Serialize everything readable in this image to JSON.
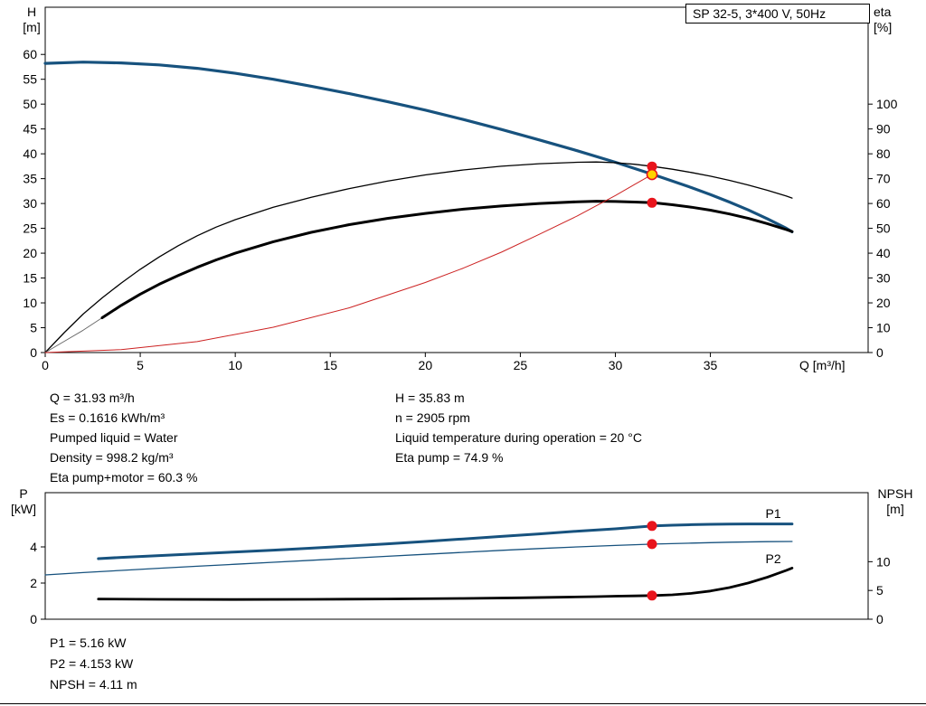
{
  "title_box": "SP 32-5, 3*400 V, 50Hz",
  "colors": {
    "curve_blue": "#17527e",
    "curve_black": "#000000",
    "curve_gray": "#666666",
    "curve_red": "#cc2222",
    "dot_red": "#e8141c",
    "dot_yellow": "#ffd400",
    "axis": "#000000"
  },
  "chart_data": [
    {
      "type": "line",
      "title": "SP 32-5, 3*400 V, 50Hz",
      "grid": false,
      "x": {
        "label": "Q [m³/h]",
        "lim": [
          0,
          43.3
        ],
        "ticks": [
          0,
          5,
          10,
          15,
          20,
          25,
          30,
          35
        ]
      },
      "y_left": {
        "label": "H",
        "unit": "[m]",
        "lim": [
          0,
          69.5
        ],
        "ticks": [
          0,
          5,
          10,
          15,
          20,
          25,
          30,
          35,
          40,
          45,
          50,
          55,
          60
        ]
      },
      "y_right": {
        "label": "eta",
        "unit": "[%]",
        "lim": [
          0,
          139
        ],
        "ticks": [
          0,
          10,
          20,
          30,
          40,
          50,
          60,
          70,
          80,
          90,
          100
        ]
      },
      "series": [
        {
          "name": "H-curve",
          "axis": "left",
          "color": "#17527e",
          "width": 3.2,
          "points": [
            [
              0,
              58.2
            ],
            [
              2,
              58.45
            ],
            [
              4,
              58.3
            ],
            [
              6,
              57.9
            ],
            [
              8,
              57.2
            ],
            [
              10,
              56.2
            ],
            [
              12,
              55.0
            ],
            [
              14,
              53.6
            ],
            [
              16,
              52.1
            ],
            [
              18,
              50.5
            ],
            [
              20,
              48.8
            ],
            [
              22,
              46.9
            ],
            [
              24,
              44.9
            ],
            [
              26,
              42.8
            ],
            [
              28,
              40.6
            ],
            [
              30,
              38.3
            ],
            [
              32,
              35.83
            ],
            [
              34,
              33.2
            ],
            [
              35,
              31.8
            ],
            [
              36,
              30.3
            ],
            [
              37,
              28.7
            ],
            [
              38,
              26.9
            ],
            [
              39,
              25.0
            ],
            [
              39.3,
              24.3
            ]
          ]
        },
        {
          "name": "eta-pump",
          "axis": "right",
          "color": "#000000",
          "width": 1.3,
          "points": [
            [
              0,
              0
            ],
            [
              0.5,
              4
            ],
            [
              1,
              8
            ],
            [
              2,
              15.5
            ],
            [
              3,
              22
            ],
            [
              4,
              28
            ],
            [
              5,
              33.5
            ],
            [
              6,
              38.5
            ],
            [
              7,
              43
            ],
            [
              8,
              47
            ],
            [
              9,
              50.5
            ],
            [
              10,
              53.5
            ],
            [
              12,
              58.5
            ],
            [
              14,
              62.5
            ],
            [
              16,
              66
            ],
            [
              18,
              69
            ],
            [
              20,
              71.5
            ],
            [
              22,
              73.5
            ],
            [
              24,
              75
            ],
            [
              26,
              76
            ],
            [
              28,
              76.6
            ],
            [
              29,
              76.7
            ],
            [
              30,
              76.4
            ],
            [
              31,
              75.8
            ],
            [
              32,
              74.9
            ],
            [
              33,
              73.8
            ],
            [
              34,
              72.5
            ],
            [
              35,
              71
            ],
            [
              36,
              69.3
            ],
            [
              37,
              67.4
            ],
            [
              38,
              65.3
            ],
            [
              39,
              63
            ],
            [
              39.3,
              62.2
            ]
          ]
        },
        {
          "name": "eta-pump-motor-ext",
          "axis": "right",
          "color": "#666666",
          "width": 0.9,
          "points": [
            [
              0,
              0
            ],
            [
              1,
              4.5
            ],
            [
              2,
              9
            ],
            [
              3,
              14
            ]
          ]
        },
        {
          "name": "eta-pump-motor",
          "axis": "right",
          "color": "#000000",
          "width": 3,
          "points": [
            [
              3,
              14
            ],
            [
              4,
              19
            ],
            [
              5,
              23.5
            ],
            [
              6,
              27.5
            ],
            [
              7,
              31
            ],
            [
              8,
              34.3
            ],
            [
              9,
              37.3
            ],
            [
              10,
              40
            ],
            [
              12,
              44.6
            ],
            [
              14,
              48.4
            ],
            [
              16,
              51.5
            ],
            [
              18,
              54
            ],
            [
              20,
              56
            ],
            [
              22,
              57.7
            ],
            [
              24,
              59
            ],
            [
              26,
              60
            ],
            [
              28,
              60.7
            ],
            [
              29,
              60.9
            ],
            [
              30,
              60.8
            ],
            [
              31,
              60.6
            ],
            [
              32,
              60.3
            ],
            [
              33,
              59.5
            ],
            [
              34,
              58.5
            ],
            [
              35,
              57.3
            ],
            [
              36,
              55.8
            ],
            [
              37,
              54
            ],
            [
              38,
              51.9
            ],
            [
              39,
              49.5
            ],
            [
              39.3,
              48.7
            ]
          ]
        },
        {
          "name": "system-curve",
          "axis": "left",
          "color": "#cc2222",
          "width": 1,
          "points": [
            [
              0,
              0
            ],
            [
              4,
              0.6
            ],
            [
              8,
              2.2
            ],
            [
              12,
              5.1
            ],
            [
              16,
              9.0
            ],
            [
              20,
              14.1
            ],
            [
              22,
              17.0
            ],
            [
              24,
              20.2
            ],
            [
              26,
              23.8
            ],
            [
              28,
              27.5
            ],
            [
              30,
              31.6
            ],
            [
              31,
              33.8
            ],
            [
              31.93,
              35.83
            ]
          ]
        }
      ],
      "markers": [
        {
          "name": "duty-eta-pump",
          "x": 31.93,
          "y": 74.9,
          "axis": "right",
          "fill": "#e8141c"
        },
        {
          "name": "duty-eta-pump-motor",
          "x": 31.93,
          "y": 60.3,
          "axis": "right",
          "fill": "#e8141c"
        },
        {
          "name": "duty-point",
          "x": 31.93,
          "y": 35.83,
          "axis": "left",
          "fill": "#ffd400",
          "stroke": "#e8141c"
        }
      ],
      "annotations": []
    },
    {
      "type": "line",
      "title": "",
      "grid": false,
      "x": {
        "label": "",
        "lim": [
          0,
          43.3
        ],
        "ticks": []
      },
      "y_left": {
        "label": "P",
        "unit": "[kW]",
        "lim": [
          0,
          7
        ],
        "ticks": [
          0,
          2,
          4
        ]
      },
      "y_right": {
        "label": "NPSH",
        "unit": "[m]",
        "lim": [
          0,
          22
        ],
        "ticks": [
          0,
          5,
          10
        ]
      },
      "series": [
        {
          "name": "P1",
          "axis": "left",
          "color": "#17527e",
          "width": 3,
          "points": [
            [
              2.8,
              3.35
            ],
            [
              4,
              3.42
            ],
            [
              6,
              3.52
            ],
            [
              8,
              3.62
            ],
            [
              10,
              3.72
            ],
            [
              12,
              3.82
            ],
            [
              14,
              3.93
            ],
            [
              16,
              4.05
            ],
            [
              18,
              4.17
            ],
            [
              20,
              4.3
            ],
            [
              22,
              4.44
            ],
            [
              24,
              4.58
            ],
            [
              26,
              4.72
            ],
            [
              28,
              4.87
            ],
            [
              30,
              5.0
            ],
            [
              31,
              5.08
            ],
            [
              32,
              5.16
            ],
            [
              33,
              5.2
            ],
            [
              34,
              5.23
            ],
            [
              35,
              5.25
            ],
            [
              36,
              5.26
            ],
            [
              37,
              5.27
            ],
            [
              38,
              5.27
            ],
            [
              39.3,
              5.27
            ]
          ]
        },
        {
          "name": "P2",
          "axis": "left",
          "color": "#17527e",
          "width": 1.3,
          "points": [
            [
              0,
              2.45
            ],
            [
              2,
              2.58
            ],
            [
              4,
              2.7
            ],
            [
              6,
              2.82
            ],
            [
              8,
              2.93
            ],
            [
              10,
              3.04
            ],
            [
              12,
              3.15
            ],
            [
              14,
              3.26
            ],
            [
              16,
              3.37
            ],
            [
              18,
              3.48
            ],
            [
              20,
              3.59
            ],
            [
              22,
              3.7
            ],
            [
              24,
              3.81
            ],
            [
              26,
              3.91
            ],
            [
              28,
              4.0
            ],
            [
              30,
              4.08
            ],
            [
              32,
              4.153
            ],
            [
              34,
              4.21
            ],
            [
              36,
              4.26
            ],
            [
              38,
              4.29
            ],
            [
              39.3,
              4.3
            ]
          ]
        },
        {
          "name": "NPSH",
          "axis": "right",
          "color": "#000000",
          "width": 2.8,
          "points": [
            [
              2.8,
              3.5
            ],
            [
              6,
              3.45
            ],
            [
              10,
              3.42
            ],
            [
              14,
              3.45
            ],
            [
              18,
              3.52
            ],
            [
              22,
              3.62
            ],
            [
              25,
              3.72
            ],
            [
              27,
              3.82
            ],
            [
              29,
              3.93
            ],
            [
              30,
              4.0
            ],
            [
              31,
              4.05
            ],
            [
              32,
              4.11
            ],
            [
              33,
              4.25
            ],
            [
              34,
              4.5
            ],
            [
              35,
              4.9
            ],
            [
              36,
              5.5
            ],
            [
              37,
              6.3
            ],
            [
              38,
              7.3
            ],
            [
              39,
              8.5
            ],
            [
              39.3,
              8.9
            ]
          ]
        }
      ],
      "markers": [
        {
          "name": "duty-p1",
          "x": 31.93,
          "y": 5.16,
          "axis": "left",
          "fill": "#e8141c"
        },
        {
          "name": "duty-p2",
          "x": 31.93,
          "y": 4.153,
          "axis": "left",
          "fill": "#e8141c"
        },
        {
          "name": "duty-npsh",
          "x": 31.93,
          "y": 4.11,
          "axis": "right",
          "fill": "#e8141c"
        }
      ],
      "annotations": [
        {
          "text": "P1",
          "x": 37.9,
          "y": 5.6,
          "axis": "left",
          "color": "#17527e"
        },
        {
          "text": "P2",
          "x": 37.9,
          "y": 3.1,
          "axis": "left",
          "color": "#17527e"
        }
      ]
    }
  ],
  "info_top": {
    "left": [
      "Q = 31.93 m³/h",
      "Es = 0.1616 kWh/m³",
      "Pumped liquid = Water",
      "Density = 998.2 kg/m³",
      "Eta pump+motor = 60.3 %"
    ],
    "right": [
      "H = 35.83 m",
      "n = 2905 rpm",
      "Liquid temperature during operation = 20 °C",
      "Eta pump = 74.9 %"
    ]
  },
  "info_bottom": [
    "P1 = 5.16 kW",
    "P2 = 4.153 kW",
    "NPSH = 4.11 m"
  ]
}
